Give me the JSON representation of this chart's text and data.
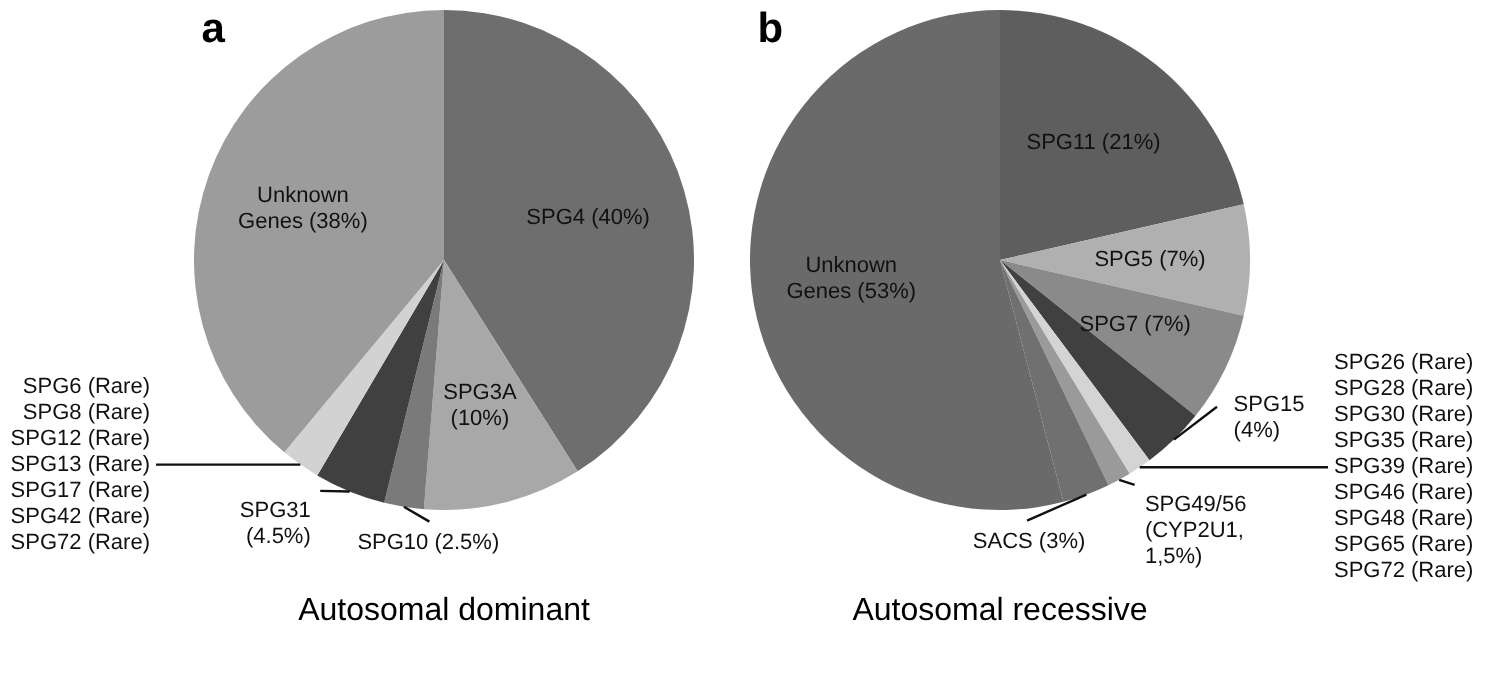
{
  "chart_data": [
    {
      "type": "pie",
      "title": "a",
      "categories": [
        "SPG4 (40%)",
        "SPG3A\n(10%)",
        "SPG10 (2.5%)",
        "SPG31\n(4.5%)",
        "SPG6 (Rare)\nSPG8 (Rare)\nSPG12 (Rare)\nSPG13 (Rare)\nSPG17 (Rare)\nSPG42 (Rare)\nSPG72 (Rare)",
        "Unknown\nGenes (38%)"
      ],
      "values": [
        40,
        10,
        2.5,
        4.5,
        2.5,
        38
      ],
      "colors": [
        "#6e6e6e",
        "#a8a8a8",
        "#7a7a7a",
        "#404040",
        "#d2d2d2",
        "#9c9c9c"
      ],
      "annotations": [
        "Autosomal dominant"
      ]
    },
    {
      "type": "pie",
      "title": "b",
      "categories": [
        "SPG11 (21%)",
        "SPG5 (7%)",
        "SPG7 (7%)",
        "SPG15\n(4%)",
        "SPG26 (Rare)\nSPG28 (Rare)\nSPG30 (Rare)\nSPG35 (Rare)\nSPG39 (Rare)\nSPG46 (Rare)\nSPG48 (Rare)\nSPG65 (Rare)\nSPG72 (Rare)",
        "SPG49/56\n(CYP2U1,\n1,5%)",
        "SACS (3%)",
        "Unknown\nGenes (53%)"
      ],
      "values": [
        21,
        7,
        7,
        4,
        1.5,
        1.5,
        3,
        53
      ],
      "colors": [
        "#5e5e5e",
        "#b0b0b0",
        "#8a8a8a",
        "#404040",
        "#d4d4d4",
        "#9a9a9a",
        "#707070",
        "#6a6a6a"
      ],
      "annotations": [
        "Autosomal recessive"
      ]
    }
  ]
}
